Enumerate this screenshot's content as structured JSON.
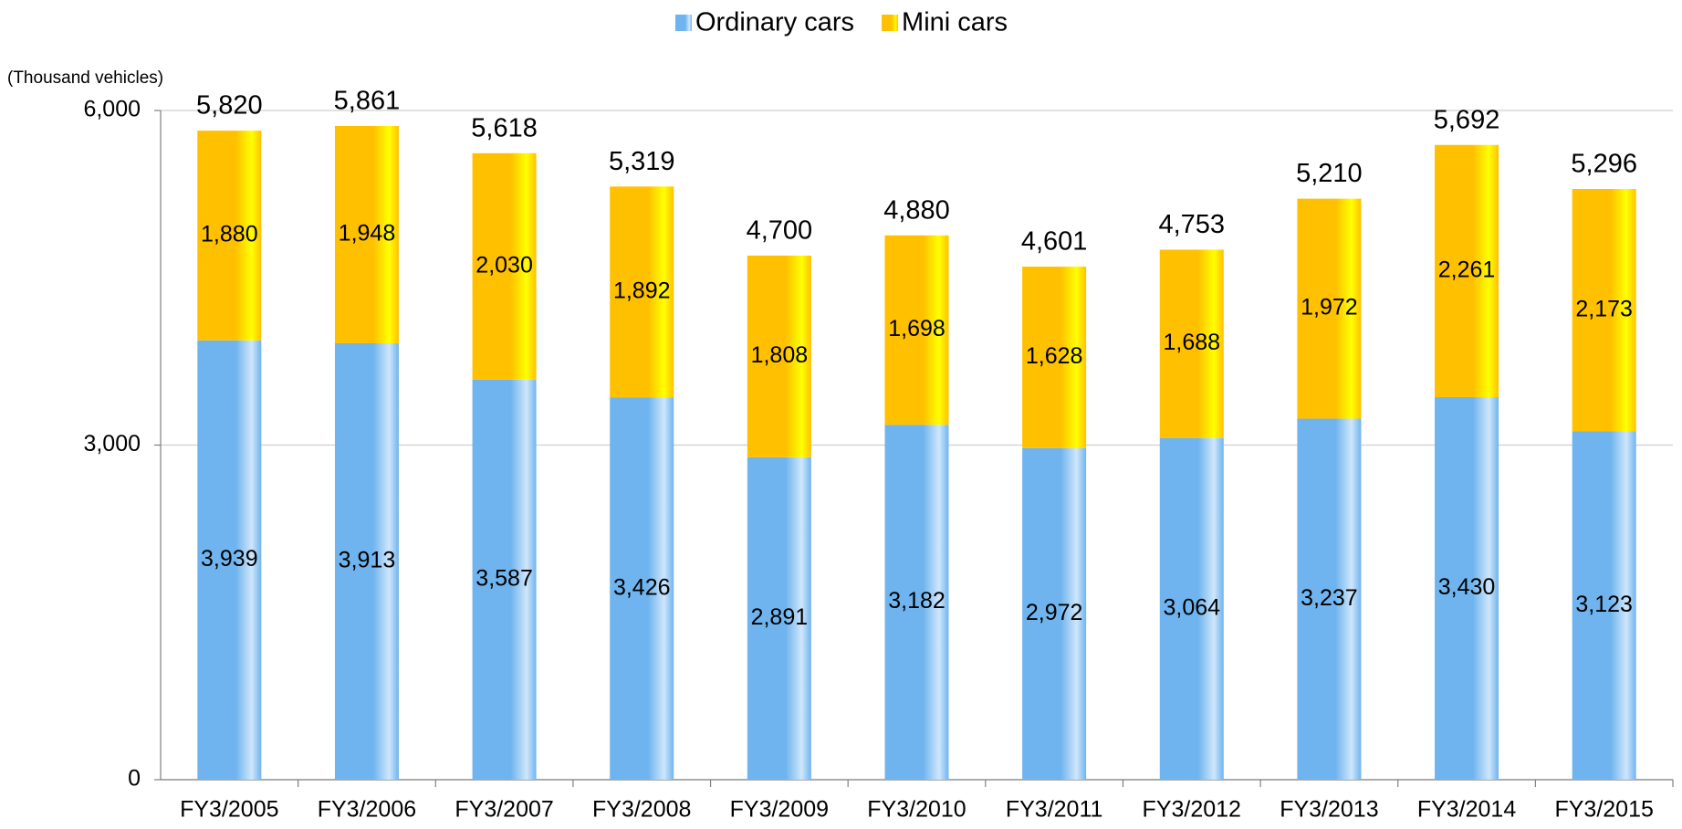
{
  "chart_data": {
    "type": "stacked_bar",
    "y_label": "(Thousand vehicles)",
    "categories": [
      "FY3/2005",
      "FY3/2006",
      "FY3/2007",
      "FY3/2008",
      "FY3/2009",
      "FY3/2010",
      "FY3/2011",
      "FY3/2012",
      "FY3/2013",
      "FY3/2014",
      "FY3/2015"
    ],
    "series": [
      {
        "name": "Ordinary cars",
        "color": "#6fb4ee",
        "values": [
          3939,
          3913,
          3587,
          3426,
          2891,
          3182,
          2972,
          3064,
          3237,
          3430,
          3123
        ],
        "value_labels": [
          "3,939",
          "3,913",
          "3,587",
          "3,426",
          "2,891",
          "3,182",
          "2,972",
          "3,064",
          "3,237",
          "3,430",
          "3,123"
        ]
      },
      {
        "name": "Mini cars",
        "color": "#ffc000",
        "values": [
          1880,
          1948,
          2030,
          1892,
          1808,
          1698,
          1628,
          1688,
          1972,
          2261,
          2173
        ],
        "value_labels": [
          "1,880",
          "1,948",
          "2,030",
          "1,892",
          "1,808",
          "1,698",
          "1,628",
          "1,688",
          "1,972",
          "2,261",
          "2,173"
        ]
      }
    ],
    "totals": [
      5820,
      5861,
      5618,
      5319,
      4700,
      4880,
      4601,
      4753,
      5210,
      5692,
      5296
    ],
    "total_labels": [
      "5,820",
      "5,861",
      "5,618",
      "5,319",
      "4,700",
      "4,880",
      "4,601",
      "4,753",
      "5,210",
      "5,692",
      "5,296"
    ],
    "ylim": [
      0,
      6000
    ],
    "yticks": [
      0,
      {
        "value": 3000,
        "label": "3,000"
      },
      {
        "value": 6000,
        "label": "6,000"
      }
    ],
    "grid": true,
    "legend": "top"
  }
}
